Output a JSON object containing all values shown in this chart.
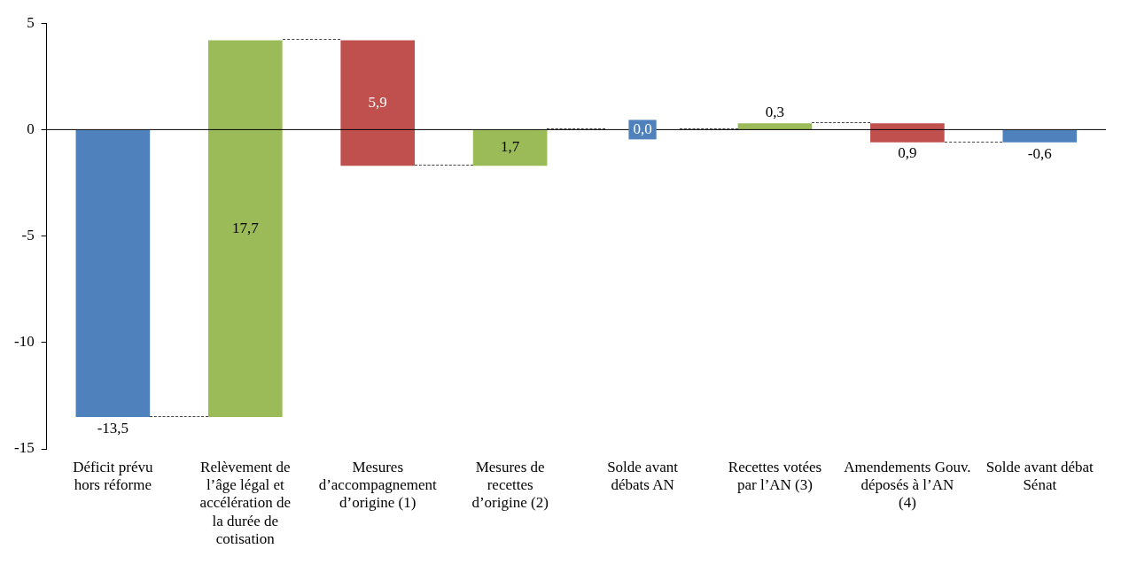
{
  "chart_data": {
    "type": "bar",
    "categories": [
      "Déficit prévu hors réforme",
      "Relèvement de l’âge légal et accélération de la durée de cotisation",
      "Mesures d’accompagnement d’origine (1)",
      "Mesures de recettes d’origine (2)",
      "Solde avant débats AN",
      "Recettes votées par l’AN (3)",
      "Amendements Gouv. déposés à l’AN (4)",
      "Solde avant débat Sénat"
    ],
    "values": [
      -13.5,
      17.7,
      -5.9,
      1.7,
      0,
      0.3,
      -0.9,
      -0.6
    ],
    "base": [
      0,
      -13.5,
      4.2,
      -1.7,
      null,
      0,
      0.3,
      0
    ],
    "colors": [
      "#4f81bd",
      "#9bbb59",
      "#c0504d",
      "#9bbb59",
      "#4f81bd",
      "#9bbb59",
      "#c0504d",
      "#4f81bd"
    ],
    "value_labels": [
      "-13,5",
      "17,7",
      "5,9",
      "1,7",
      "0,0",
      "0,3",
      "0,9",
      "-0,6"
    ],
    "ref_lines": [
      {
        "axis": "y",
        "value": 0,
        "color": "#000000"
      }
    ],
    "ylim": [
      -15,
      5
    ],
    "yticks": [
      -15,
      -10,
      -5,
      0,
      5
    ],
    "grid": false,
    "legend": false
  }
}
